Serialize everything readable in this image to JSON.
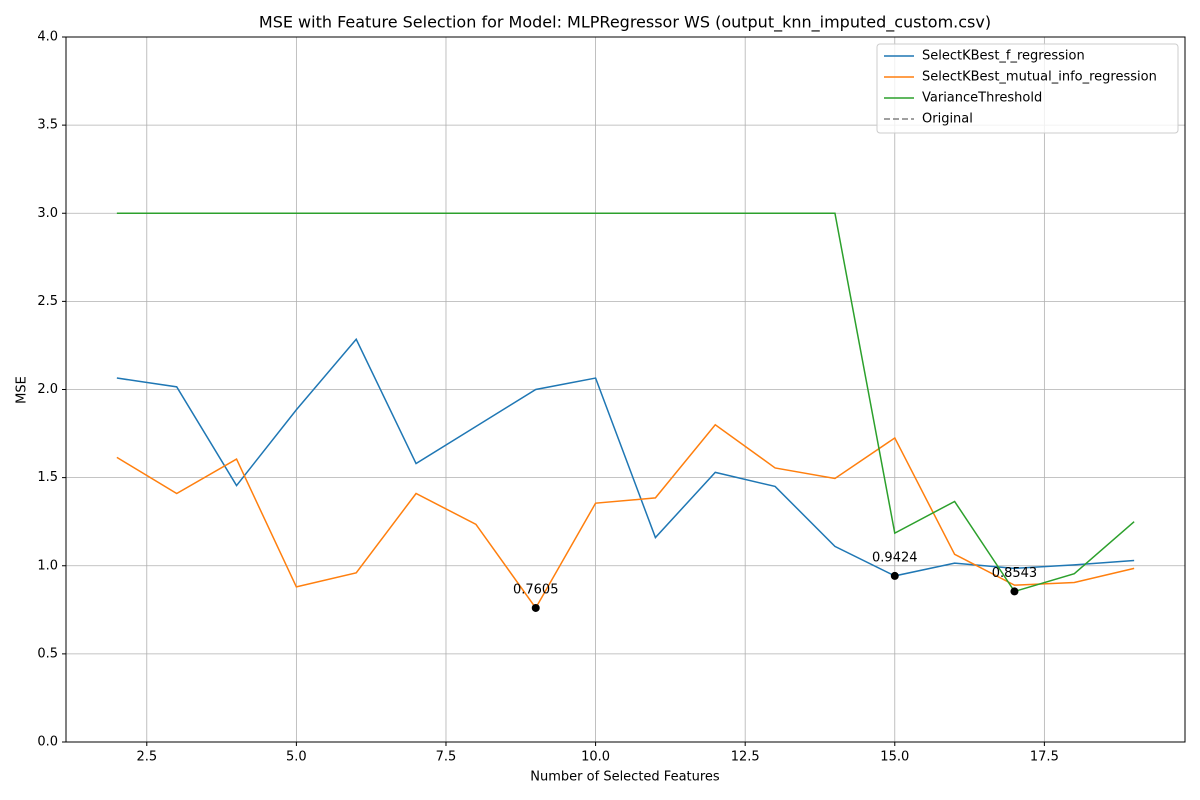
{
  "chart_data": {
    "type": "line",
    "title": "MSE with Feature Selection for Model: MLPRegressor WS (output_knn_imputed_custom.csv)",
    "xlabel": "Number of Selected Features",
    "ylabel": "MSE",
    "x": [
      2,
      3,
      4,
      5,
      6,
      7,
      8,
      9,
      10,
      11,
      12,
      13,
      14,
      15,
      16,
      17,
      18,
      19
    ],
    "series": [
      {
        "name": "SelectKBest_f_regression",
        "color": "#1f77b4",
        "linestyle": "solid",
        "values": [
          2.065,
          2.015,
          1.455,
          1.885,
          2.285,
          1.58,
          1.79,
          2.0,
          2.065,
          1.16,
          1.53,
          1.45,
          1.11,
          0.9424,
          1.015,
          0.985,
          1.005,
          1.03
        ]
      },
      {
        "name": "SelectKBest_mutual_info_regression",
        "color": "#ff7f0e",
        "linestyle": "solid",
        "values": [
          1.615,
          1.41,
          1.605,
          0.88,
          0.96,
          1.41,
          1.235,
          0.7605,
          1.355,
          1.385,
          1.8,
          1.555,
          1.495,
          1.725,
          1.065,
          0.89,
          0.905,
          0.985
        ]
      },
      {
        "name": "VarianceThreshold",
        "color": "#2ca02c",
        "linestyle": "solid",
        "values": [
          3.0,
          3.0,
          3.0,
          3.0,
          3.0,
          3.0,
          3.0,
          3.0,
          3.0,
          3.0,
          3.0,
          3.0,
          3.0,
          1.185,
          1.365,
          0.8543,
          0.955,
          1.25
        ]
      },
      {
        "name": "Original",
        "color": "#808080",
        "linestyle": "dashed",
        "values": [
          null,
          null,
          null,
          null,
          null,
          null,
          null,
          null,
          null,
          null,
          null,
          null,
          null,
          null,
          null,
          null,
          null,
          null
        ]
      }
    ],
    "annotations": [
      {
        "x": 9,
        "y": 0.7605
      },
      {
        "x": 15,
        "y": 0.9424
      },
      {
        "x": 17,
        "y": 0.8543
      }
    ],
    "xlim": [
      1.15,
      19.85
    ],
    "xticks": [
      2.5,
      {
        "value": 5,
        "label": "5.0"
      },
      7.5,
      {
        "value": 10,
        "label": "10.0"
      },
      12.5,
      {
        "value": 15,
        "label": "15.0"
      },
      17.5
    ],
    "ylim": [
      0,
      4
    ],
    "yticks": [
      {
        "value": 0,
        "label": "0.0"
      },
      0.5,
      {
        "value": 1,
        "label": "1.0"
      },
      1.5,
      {
        "value": 2,
        "label": "2.0"
      },
      2.5,
      {
        "value": 3,
        "label": "3.0"
      },
      3.5,
      {
        "value": 4,
        "label": "4.0"
      }
    ],
    "grid": true,
    "legend": "upper right"
  }
}
